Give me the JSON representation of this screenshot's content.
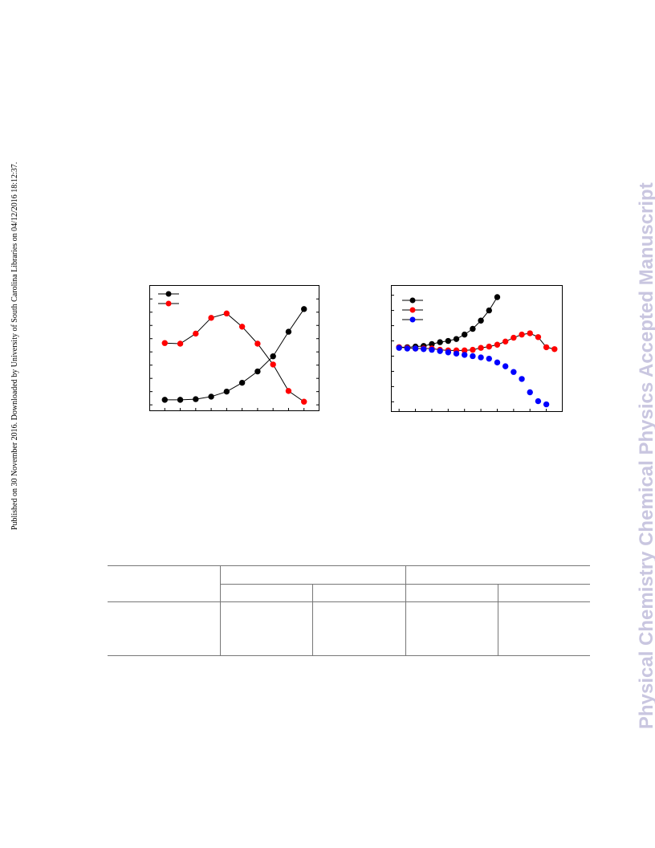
{
  "side_note": "Published on 30 November 2016. Downloaded by University of South Carolina Libraries on 04/12/2016 18:12:37.",
  "watermark": "Physical Chemistry Chemical Physics Accepted Manuscript",
  "colors": {
    "black": "#000000",
    "red": "#ff0000",
    "blue": "#0000ff",
    "watermark": "#c9c6e0"
  },
  "chart_data": [
    {
      "type": "line",
      "x": [
        1,
        2,
        3,
        4,
        5,
        6,
        7,
        8,
        9,
        10
      ],
      "xlim": [
        0,
        11
      ],
      "ylim": [
        0,
        1
      ],
      "series": [
        {
          "color": "#000000",
          "values": [
            0.09,
            0.09,
            0.095,
            0.115,
            0.155,
            0.225,
            0.315,
            0.435,
            0.63,
            0.81
          ]
        },
        {
          "color": "#ff0000",
          "values": [
            0.54,
            0.535,
            0.615,
            0.74,
            0.775,
            0.67,
            0.535,
            0.37,
            0.16,
            0.075
          ]
        }
      ],
      "legend": "top-left",
      "grid": false
    },
    {
      "type": "scatter",
      "x": [
        1,
        2,
        3,
        4,
        5,
        6,
        7,
        8,
        9,
        10,
        11,
        12,
        13,
        14,
        15,
        16,
        17,
        18,
        19,
        20
      ],
      "xlim": [
        0,
        21
      ],
      "ylim": [
        0,
        1
      ],
      "series": [
        {
          "color": "#000000",
          "values": [
            0.51,
            0.51,
            0.515,
            0.52,
            0.535,
            0.55,
            0.56,
            0.575,
            0.61,
            0.655,
            0.72,
            0.8,
            0.905
          ]
        },
        {
          "color": "#ff0000",
          "values": [
            0.51,
            0.505,
            0.5,
            0.5,
            0.5,
            0.49,
            0.485,
            0.485,
            0.485,
            0.49,
            0.505,
            0.515,
            0.53,
            0.555,
            0.585,
            0.61,
            0.62,
            0.59,
            0.51,
            0.495
          ]
        },
        {
          "color": "#0000ff",
          "values": [
            0.505,
            0.5,
            0.5,
            0.495,
            0.49,
            0.48,
            0.47,
            0.46,
            0.45,
            0.44,
            0.43,
            0.42,
            0.39,
            0.36,
            0.315,
            0.26,
            0.155,
            0.085,
            0.06
          ]
        }
      ],
      "legend": "top-left",
      "grid": false
    }
  ]
}
